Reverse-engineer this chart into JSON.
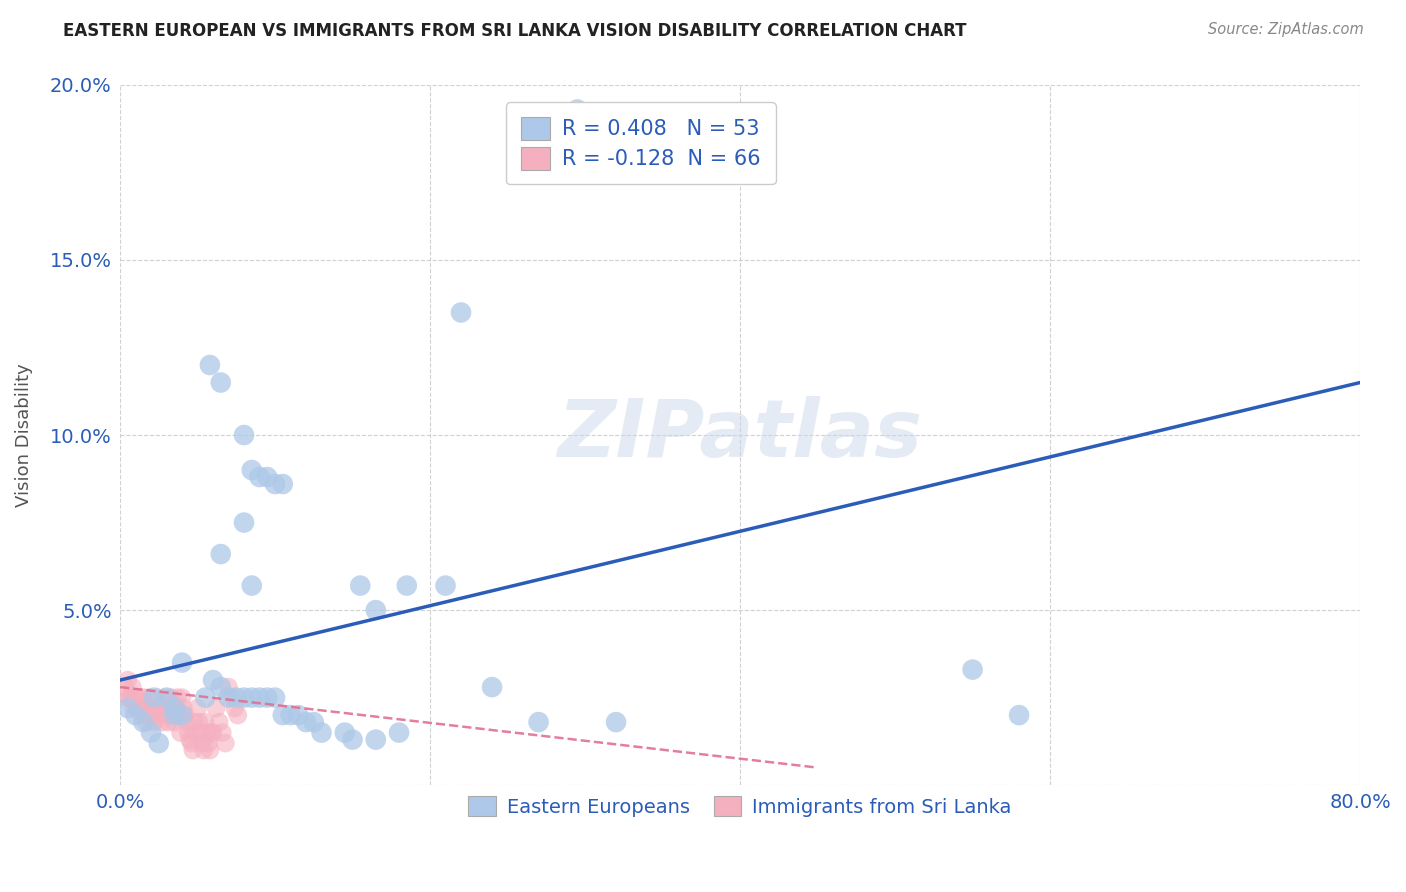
{
  "title": "EASTERN EUROPEAN VS IMMIGRANTS FROM SRI LANKA VISION DISABILITY CORRELATION CHART",
  "source": "Source: ZipAtlas.com",
  "ylabel": "Vision Disability",
  "xlim": [
    0.0,
    0.8
  ],
  "ylim": [
    0.0,
    0.2
  ],
  "watermark": "ZIPatlas",
  "legend_blue_label": "Eastern Europeans",
  "legend_pink_label": "Immigrants from Sri Lanka",
  "blue_R": 0.408,
  "blue_N": 53,
  "pink_R": -0.128,
  "pink_N": 66,
  "blue_color": "#adc8e8",
  "blue_line_color": "#2b5cb8",
  "pink_color": "#f5b0bf",
  "pink_line_color": "#e07090",
  "background_color": "#ffffff",
  "grid_color": "#cccccc",
  "blue_line_x0": 0.0,
  "blue_line_y0": 0.03,
  "blue_line_x1": 0.8,
  "blue_line_y1": 0.115,
  "pink_line_x0": 0.0,
  "pink_line_y0": 0.028,
  "pink_line_x1": 0.45,
  "pink_line_y1": 0.005,
  "blue_scatter_x": [
    0.295,
    0.058,
    0.065,
    0.08,
    0.085,
    0.09,
    0.095,
    0.1,
    0.105,
    0.08,
    0.065,
    0.085,
    0.155,
    0.165,
    0.185,
    0.21,
    0.022,
    0.035,
    0.04,
    0.055,
    0.06,
    0.065,
    0.07,
    0.075,
    0.08,
    0.085,
    0.09,
    0.095,
    0.1,
    0.105,
    0.11,
    0.115,
    0.12,
    0.125,
    0.13,
    0.145,
    0.15,
    0.165,
    0.18,
    0.22,
    0.24,
    0.27,
    0.32,
    0.55,
    0.58,
    0.005,
    0.01,
    0.015,
    0.02,
    0.025,
    0.03,
    0.035,
    0.04
  ],
  "blue_scatter_y": [
    0.193,
    0.12,
    0.115,
    0.1,
    0.09,
    0.088,
    0.088,
    0.086,
    0.086,
    0.075,
    0.066,
    0.057,
    0.057,
    0.05,
    0.057,
    0.057,
    0.025,
    0.02,
    0.02,
    0.025,
    0.03,
    0.028,
    0.025,
    0.025,
    0.025,
    0.025,
    0.025,
    0.025,
    0.025,
    0.02,
    0.02,
    0.02,
    0.018,
    0.018,
    0.015,
    0.015,
    0.013,
    0.013,
    0.015,
    0.135,
    0.028,
    0.018,
    0.018,
    0.033,
    0.02,
    0.022,
    0.02,
    0.018,
    0.015,
    0.012,
    0.025,
    0.022,
    0.035
  ],
  "pink_scatter_x": [
    0.003,
    0.004,
    0.005,
    0.006,
    0.007,
    0.008,
    0.009,
    0.01,
    0.011,
    0.012,
    0.013,
    0.014,
    0.015,
    0.016,
    0.017,
    0.018,
    0.019,
    0.02,
    0.021,
    0.022,
    0.023,
    0.024,
    0.025,
    0.026,
    0.027,
    0.028,
    0.029,
    0.03,
    0.031,
    0.032,
    0.033,
    0.034,
    0.035,
    0.036,
    0.037,
    0.038,
    0.039,
    0.04,
    0.041,
    0.042,
    0.043,
    0.044,
    0.045,
    0.046,
    0.047,
    0.048,
    0.049,
    0.05,
    0.051,
    0.052,
    0.053,
    0.054,
    0.055,
    0.056,
    0.057,
    0.058,
    0.059,
    0.06,
    0.062,
    0.064,
    0.066,
    0.068,
    0.07,
    0.072,
    0.074,
    0.076
  ],
  "pink_scatter_y": [
    0.028,
    0.025,
    0.03,
    0.025,
    0.025,
    0.028,
    0.022,
    0.025,
    0.022,
    0.025,
    0.022,
    0.02,
    0.025,
    0.02,
    0.018,
    0.022,
    0.025,
    0.022,
    0.02,
    0.018,
    0.022,
    0.025,
    0.022,
    0.02,
    0.018,
    0.022,
    0.025,
    0.02,
    0.018,
    0.022,
    0.025,
    0.02,
    0.018,
    0.022,
    0.025,
    0.02,
    0.015,
    0.025,
    0.022,
    0.02,
    0.018,
    0.015,
    0.013,
    0.012,
    0.01,
    0.018,
    0.015,
    0.022,
    0.018,
    0.015,
    0.012,
    0.01,
    0.018,
    0.015,
    0.012,
    0.01,
    0.015,
    0.015,
    0.022,
    0.018,
    0.015,
    0.012,
    0.028,
    0.025,
    0.022,
    0.02
  ]
}
